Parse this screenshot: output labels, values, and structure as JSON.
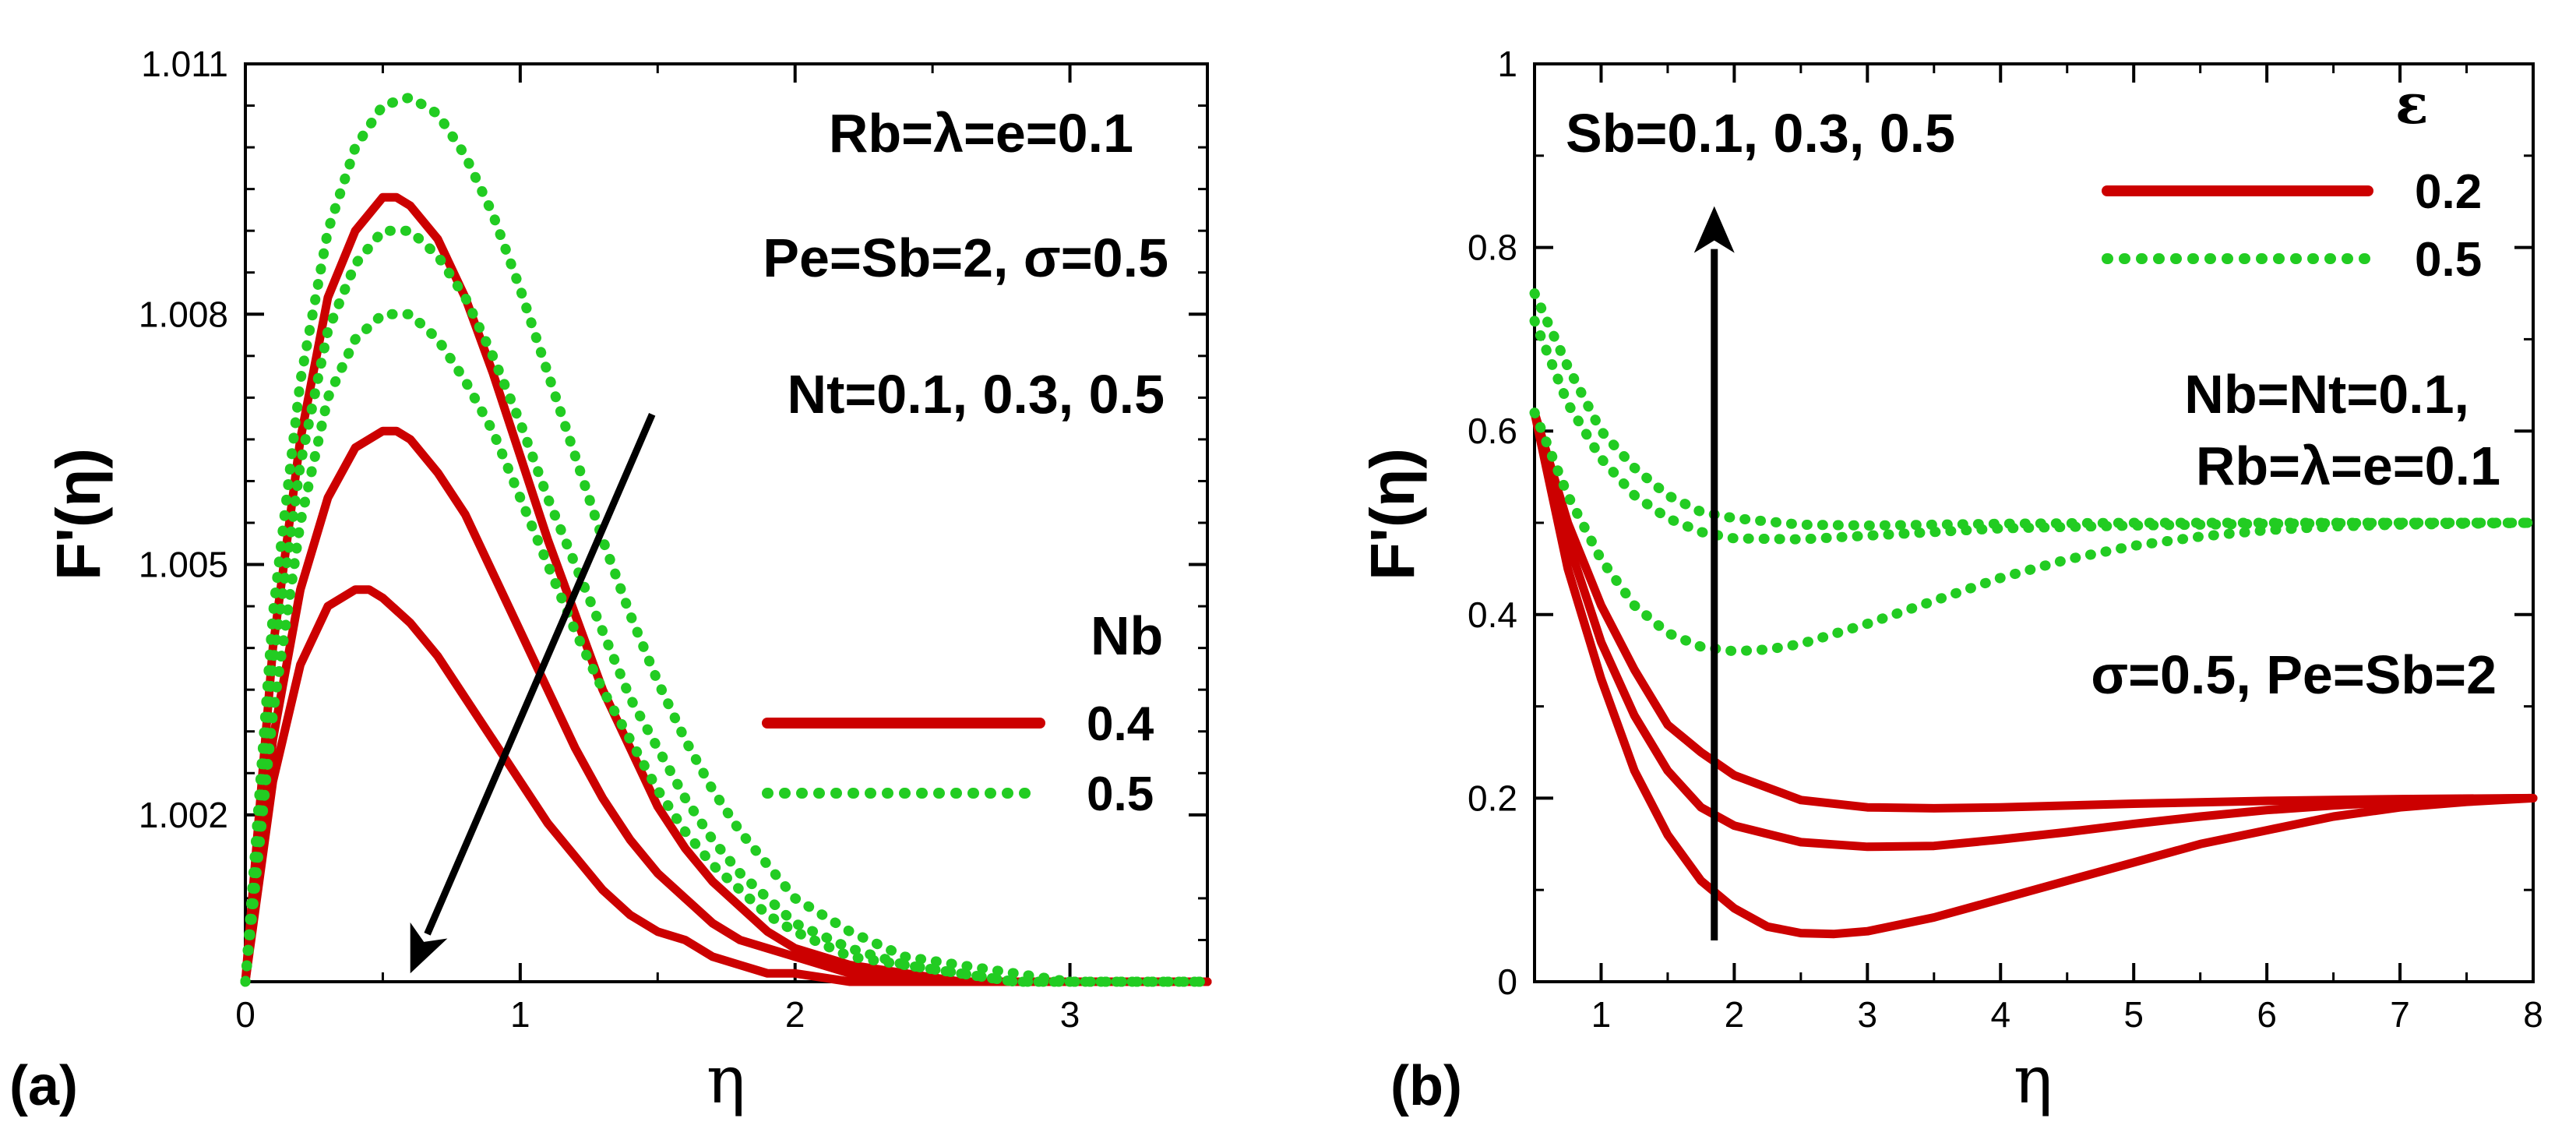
{
  "colors": {
    "solid": "#cc0000",
    "dotted": "#22cc22",
    "arrow": "#000000"
  },
  "chart_data": [
    {
      "type": "line",
      "panel_label": "(a)",
      "xlabel": "η",
      "ylabel": "F'(η)",
      "xlim": [
        0,
        3.5
      ],
      "ylim": [
        1.0,
        1.011
      ],
      "xticks": [
        {
          "v": 0,
          "label": "0"
        },
        {
          "v": 1,
          "label": "1"
        },
        {
          "v": 2,
          "label": "2"
        },
        {
          "v": 3,
          "label": "3"
        }
      ],
      "yticks": [
        {
          "v": 1.002,
          "label": "1.002"
        },
        {
          "v": 1.005,
          "label": "1.005"
        },
        {
          "v": 1.008,
          "label": "1.008"
        },
        {
          "v": 1.011,
          "label": "1.011"
        }
      ],
      "minor_xticks": [
        0.5,
        1.5,
        2.5
      ],
      "minor_yticks": [
        1.0005,
        1.001,
        1.0025,
        1.003,
        1.0035,
        1.004,
        1.0045,
        1.0055,
        1.006,
        1.0065,
        1.007,
        1.0075,
        1.0085,
        1.009,
        1.0095,
        1.01,
        1.0105
      ],
      "annotations": [
        {
          "text": "Rb=λ=e=0.1",
          "anchor": "top-right"
        },
        {
          "text": "Pe=Sb=2, σ=0.5",
          "anchor": "top-right"
        },
        {
          "text": "Nt=0.1, 0.3, 0.5",
          "anchor": "top-right"
        }
      ],
      "arrow": {
        "from": [
          1.48,
          1.0068
        ],
        "to": [
          0.6,
          1.0001
        ],
        "meaning": "increasing Nt"
      },
      "legend": {
        "title": "Nb",
        "position": "center-right",
        "entries": [
          {
            "label": "0.4",
            "style": "solid"
          },
          {
            "label": "0.5",
            "style": "dotted"
          }
        ]
      },
      "series": [
        {
          "name": "Nb=0.4, Nt=0.1",
          "style": "solid",
          "x": [
            0,
            0.1,
            0.2,
            0.3,
            0.4,
            0.5,
            0.55,
            0.6,
            0.7,
            0.8,
            0.9,
            1.0,
            1.1,
            1.2,
            1.3,
            1.4,
            1.5,
            1.6,
            1.7,
            1.8,
            1.9,
            2.0,
            2.2,
            2.4,
            2.6,
            2.8,
            3.0,
            3.5
          ],
          "y": [
            1.0,
            1.004,
            1.0065,
            1.0082,
            1.009,
            1.0094,
            1.0094,
            1.0093,
            1.0089,
            1.0082,
            1.0073,
            1.0063,
            1.0053,
            1.0044,
            1.0035,
            1.0028,
            1.0021,
            1.0016,
            1.0012,
            1.0009,
            1.0006,
            1.0004,
            1.0002,
            1.0001,
            1.0,
            1.0,
            1.0,
            1.0
          ]
        },
        {
          "name": "Nb=0.4, Nt=0.3",
          "style": "solid",
          "x": [
            0,
            0.1,
            0.2,
            0.3,
            0.4,
            0.5,
            0.55,
            0.6,
            0.7,
            0.8,
            0.9,
            1.0,
            1.1,
            1.2,
            1.3,
            1.4,
            1.5,
            1.6,
            1.7,
            1.8,
            1.9,
            2.0,
            2.2,
            2.4,
            2.6,
            2.8,
            3.0,
            3.5
          ],
          "y": [
            1.0,
            1.0029,
            1.0047,
            1.0058,
            1.0064,
            1.0066,
            1.0066,
            1.0065,
            1.0061,
            1.0056,
            1.0049,
            1.0042,
            1.0035,
            1.0028,
            1.0022,
            1.0017,
            1.0013,
            1.001,
            1.0007,
            1.0005,
            1.0004,
            1.0003,
            1.0001,
            1.0001,
            1.0,
            1.0,
            1.0,
            1.0
          ]
        },
        {
          "name": "Nb=0.4, Nt=0.5",
          "style": "solid",
          "x": [
            0,
            0.1,
            0.2,
            0.3,
            0.4,
            0.45,
            0.5,
            0.6,
            0.7,
            0.8,
            0.9,
            1.0,
            1.1,
            1.2,
            1.3,
            1.4,
            1.5,
            1.6,
            1.7,
            1.8,
            1.9,
            2.0,
            2.2,
            2.4,
            2.6,
            2.8,
            3.0,
            3.5
          ],
          "y": [
            1.0,
            1.0024,
            1.0038,
            1.0045,
            1.0047,
            1.0047,
            1.0046,
            1.0043,
            1.0039,
            1.0034,
            1.0029,
            1.0024,
            1.0019,
            1.0015,
            1.0011,
            1.0008,
            1.0006,
            1.0005,
            1.0003,
            1.0002,
            1.0001,
            1.0001,
            1.0,
            1.0,
            1.0,
            1.0,
            1.0,
            1.0
          ]
        },
        {
          "name": "Nb=0.5, Nt=0.1",
          "style": "dotted",
          "x": [
            0,
            0.1,
            0.2,
            0.3,
            0.4,
            0.5,
            0.6,
            0.7,
            0.8,
            0.9,
            1.0,
            1.1,
            1.2,
            1.3,
            1.4,
            1.5,
            1.6,
            1.7,
            1.8,
            1.9,
            2.0,
            2.2,
            2.4,
            2.6,
            2.8,
            3.0,
            3.2,
            3.5
          ],
          "y": [
            1.0,
            1.0044,
            1.0072,
            1.009,
            1.01,
            1.0105,
            1.0106,
            1.0104,
            1.0099,
            1.0092,
            1.0083,
            1.0073,
            1.0063,
            1.0053,
            1.0044,
            1.0036,
            1.0029,
            1.0023,
            1.0018,
            1.0014,
            1.001,
            1.0006,
            1.0003,
            1.0002,
            1.0001,
            1.0,
            1.0,
            1.0
          ]
        },
        {
          "name": "Nb=0.5, Nt=0.3",
          "style": "dotted",
          "x": [
            0,
            0.1,
            0.2,
            0.3,
            0.4,
            0.5,
            0.55,
            0.6,
            0.7,
            0.8,
            0.9,
            1.0,
            1.1,
            1.2,
            1.3,
            1.4,
            1.5,
            1.6,
            1.7,
            1.8,
            1.9,
            2.0,
            2.2,
            2.4,
            2.6,
            2.8,
            3.0,
            3.5
          ],
          "y": [
            1.0,
            1.0038,
            1.0062,
            1.0078,
            1.0086,
            1.009,
            1.009,
            1.009,
            1.0087,
            1.0082,
            1.0075,
            1.0067,
            1.0058,
            1.005,
            1.0042,
            1.0034,
            1.0028,
            1.0022,
            1.0017,
            1.0013,
            1.001,
            1.0007,
            1.0004,
            1.0002,
            1.0001,
            1.0,
            1.0,
            1.0
          ]
        },
        {
          "name": "Nb=0.5, Nt=0.5",
          "style": "dotted",
          "x": [
            0,
            0.1,
            0.2,
            0.3,
            0.4,
            0.5,
            0.55,
            0.6,
            0.7,
            0.8,
            0.9,
            1.0,
            1.1,
            1.2,
            1.3,
            1.4,
            1.5,
            1.6,
            1.7,
            1.8,
            1.9,
            2.0,
            2.2,
            2.4,
            2.6,
            2.8,
            3.0,
            3.5
          ],
          "y": [
            1.0,
            1.0032,
            1.0055,
            1.007,
            1.0077,
            1.008,
            1.008,
            1.008,
            1.0077,
            1.0072,
            1.0066,
            1.0058,
            1.005,
            1.0042,
            1.0035,
            1.0029,
            1.0023,
            1.0018,
            1.0014,
            1.0011,
            1.0008,
            1.0006,
            1.0003,
            1.0002,
            1.0001,
            1.0,
            1.0,
            1.0
          ]
        }
      ]
    },
    {
      "type": "line",
      "panel_label": "(b)",
      "xlabel": "η",
      "ylabel": "F'(η)",
      "xlim": [
        0.5,
        8
      ],
      "ylim": [
        0,
        1
      ],
      "xticks": [
        {
          "v": 1,
          "label": "1"
        },
        {
          "v": 2,
          "label": "2"
        },
        {
          "v": 3,
          "label": "3"
        },
        {
          "v": 4,
          "label": "4"
        },
        {
          "v": 5,
          "label": "5"
        },
        {
          "v": 6,
          "label": "6"
        },
        {
          "v": 7,
          "label": "7"
        },
        {
          "v": 8,
          "label": "8"
        }
      ],
      "yticks": [
        {
          "v": 0,
          "label": "0"
        },
        {
          "v": 0.2,
          "label": "0.2"
        },
        {
          "v": 0.4,
          "label": "0.4"
        },
        {
          "v": 0.6,
          "label": "0.6"
        },
        {
          "v": 0.8,
          "label": "0.8"
        },
        {
          "v": 1,
          "label": "1"
        }
      ],
      "minor_xticks": [
        1.5,
        2.5,
        3.5,
        4.5,
        5.5,
        6.5,
        7.5
      ],
      "minor_yticks": [
        0.1,
        0.3,
        0.5,
        0.7,
        0.9
      ],
      "annotations": [
        {
          "text": "Sb=0.1, 0.3, 0.5",
          "anchor": "top-left"
        },
        {
          "text": "Nb=Nt=0.1,",
          "anchor": "right"
        },
        {
          "text": "Rb=λ=e=0.1",
          "anchor": "right"
        },
        {
          "text": "σ=0.5, Pe=Sb=2",
          "anchor": "right"
        }
      ],
      "arrow": {
        "from": [
          1.85,
          0.045
        ],
        "to": [
          1.85,
          0.845
        ],
        "meaning": "increasing Sb"
      },
      "legend": {
        "title": "ε",
        "position": "top-right",
        "entries": [
          {
            "label": "0.2",
            "style": "solid"
          },
          {
            "label": "0.5",
            "style": "dotted"
          }
        ]
      },
      "series": [
        {
          "name": "ε=0.2, Sb=0.1",
          "style": "solid",
          "x": [
            0.5,
            0.75,
            1.0,
            1.25,
            1.5,
            1.75,
            2.0,
            2.25,
            2.5,
            2.75,
            3.0,
            3.5,
            4.0,
            4.5,
            5.0,
            5.5,
            6.0,
            6.5,
            7.0,
            7.5,
            8.0
          ],
          "y": [
            0.62,
            0.45,
            0.33,
            0.23,
            0.16,
            0.11,
            0.08,
            0.06,
            0.053,
            0.052,
            0.055,
            0.07,
            0.09,
            0.11,
            0.13,
            0.15,
            0.165,
            0.18,
            0.19,
            0.196,
            0.2
          ]
        },
        {
          "name": "ε=0.2, Sb=0.3",
          "style": "solid",
          "x": [
            0.5,
            0.75,
            1.0,
            1.25,
            1.5,
            1.75,
            2.0,
            2.5,
            3.0,
            3.5,
            4.0,
            4.5,
            5.0,
            5.5,
            6.0,
            6.5,
            7.0,
            7.5,
            8.0
          ],
          "y": [
            0.62,
            0.48,
            0.37,
            0.29,
            0.23,
            0.19,
            0.17,
            0.152,
            0.147,
            0.148,
            0.155,
            0.163,
            0.172,
            0.18,
            0.187,
            0.192,
            0.196,
            0.199,
            0.2
          ]
        },
        {
          "name": "ε=0.2, Sb=0.5",
          "style": "solid",
          "x": [
            0.5,
            0.75,
            1.0,
            1.25,
            1.5,
            1.75,
            2.0,
            2.5,
            3.0,
            3.5,
            4.0,
            5.0,
            6.0,
            7.0,
            8.0
          ],
          "y": [
            0.62,
            0.5,
            0.41,
            0.34,
            0.28,
            0.25,
            0.225,
            0.198,
            0.19,
            0.189,
            0.19,
            0.194,
            0.197,
            0.199,
            0.2
          ]
        },
        {
          "name": "ε=0.5, Sb=0.1",
          "style": "dotted",
          "x": [
            0.5,
            0.75,
            1.0,
            1.25,
            1.5,
            1.75,
            2.0,
            2.25,
            2.5,
            3.0,
            3.5,
            4.0,
            4.5,
            5.0,
            5.5,
            6.0,
            6.5,
            7.0,
            7.5,
            8.0
          ],
          "y": [
            0.62,
            0.53,
            0.46,
            0.41,
            0.38,
            0.365,
            0.36,
            0.362,
            0.368,
            0.39,
            0.415,
            0.44,
            0.46,
            0.475,
            0.485,
            0.492,
            0.496,
            0.498,
            0.499,
            0.5
          ]
        },
        {
          "name": "ε=0.5, Sb=0.3",
          "style": "dotted",
          "x": [
            0.5,
            0.75,
            1.0,
            1.25,
            1.5,
            1.75,
            2.0,
            2.5,
            3.0,
            3.5,
            4.0,
            5.0,
            6.0,
            7.0,
            8.0
          ],
          "y": [
            0.72,
            0.63,
            0.57,
            0.53,
            0.505,
            0.49,
            0.483,
            0.482,
            0.486,
            0.49,
            0.494,
            0.497,
            0.499,
            0.5,
            0.5
          ]
        },
        {
          "name": "ε=0.5, Sb=0.5",
          "style": "dotted",
          "x": [
            0.5,
            0.75,
            1.0,
            1.25,
            1.5,
            1.75,
            2.0,
            2.5,
            3.0,
            3.5,
            4.0,
            5.0,
            6.0,
            7.0,
            8.0
          ],
          "y": [
            0.75,
            0.67,
            0.6,
            0.56,
            0.53,
            0.512,
            0.505,
            0.498,
            0.497,
            0.498,
            0.499,
            0.5,
            0.5,
            0.5,
            0.5
          ]
        }
      ]
    }
  ]
}
